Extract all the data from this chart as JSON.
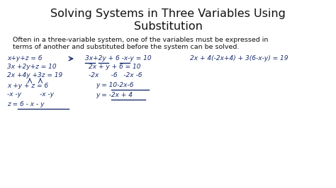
{
  "title_line1": "Solving Systems in Three Variables Using",
  "title_line2": "Substitution",
  "subtitle_line1": "Often in a three-variable system, one of the variables must be expressed in",
  "subtitle_line2": "terms of another and substituted before the system can be solved.",
  "background_color": "#ffffff",
  "title_color": "#111111",
  "subtitle_color": "#111111",
  "ink_color": "#1a2e6e",
  "title_fontsize": 11.5,
  "subtitle_fontsize": 6.8,
  "eq_fontsize": 6.5
}
